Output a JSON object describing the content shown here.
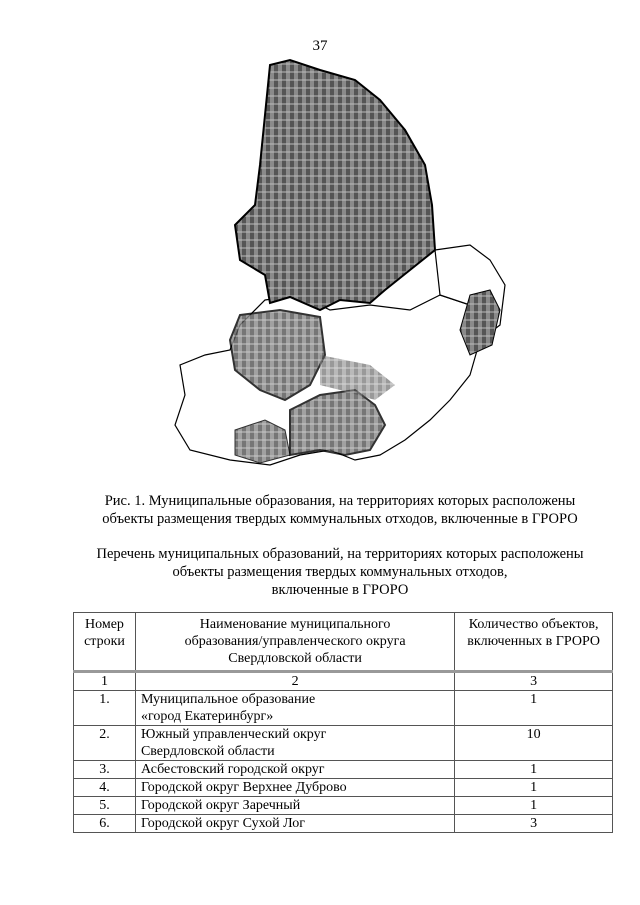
{
  "page_number": "37",
  "figure_caption": [
    "Рис. 1. Муниципальные образования, на территориях которых расположены",
    "объекты размещения твердых коммунальных отходов, включенные в ГРОРО"
  ],
  "list_title": [
    "Перечень муниципальных образований, на территориях которых расположены",
    "объекты размещения твердых коммунальных отходов,",
    "включенные в ГРОРО"
  ],
  "map": {
    "hatched_color": "#6e6e6e",
    "fill_color": "#ffffff",
    "border_color": "#000000"
  },
  "table": {
    "headers": [
      [
        "Номер",
        "строки"
      ],
      [
        "Наименование муниципального",
        "образования/управленческого округа",
        "Свердловской области"
      ],
      [
        "Количество объектов,",
        "включенных в ГРОРО"
      ]
    ],
    "column_numbers": [
      "1",
      "2",
      "3"
    ],
    "rows": [
      {
        "num": "1.",
        "name": [
          "Муниципальное образование",
          "«город Екатеринбург»"
        ],
        "count": "1"
      },
      {
        "num": "2.",
        "name": [
          "Южный управленческий округ",
          "Свердловской области"
        ],
        "count": "10"
      },
      {
        "num": "3.",
        "name": [
          "Асбестовский городской округ"
        ],
        "count": "1"
      },
      {
        "num": "4.",
        "name": [
          "Городской округ Верхнее Дуброво"
        ],
        "count": "1"
      },
      {
        "num": "5.",
        "name": [
          "Городской округ Заречный"
        ],
        "count": "1"
      },
      {
        "num": "6.",
        "name": [
          "Городской округ Сухой Лог"
        ],
        "count": "3"
      }
    ]
  }
}
